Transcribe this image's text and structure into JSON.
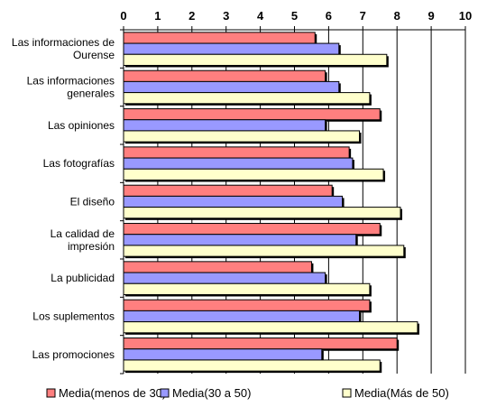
{
  "chart_data": {
    "type": "bar",
    "orientation": "horizontal",
    "categories": [
      [
        "Las informaciones de",
        "Ourense"
      ],
      [
        "Las informaciones",
        "generales"
      ],
      [
        "Las opiniones"
      ],
      [
        "Las fotografías"
      ],
      [
        "El diseño"
      ],
      [
        "La calidad de",
        "impresión"
      ],
      [
        "La publicidad"
      ],
      [
        "Los suplementos"
      ],
      [
        "Las promociones"
      ]
    ],
    "series": [
      {
        "name": "Media(menos de 30)",
        "color": "#ff7f7f",
        "values": [
          5.6,
          5.9,
          7.5,
          6.6,
          6.1,
          7.5,
          5.5,
          7.2,
          8.0
        ]
      },
      {
        "name": "Media(30 a 50)",
        "color": "#9999ff",
        "values": [
          6.3,
          6.3,
          5.9,
          6.7,
          6.4,
          6.8,
          5.9,
          6.9,
          5.8
        ]
      },
      {
        "name": "Media(Más de 50)",
        "color": "#ffffcc",
        "values": [
          7.7,
          7.2,
          6.9,
          7.6,
          8.1,
          8.2,
          7.2,
          8.6,
          7.5
        ]
      }
    ],
    "xlim": [
      0,
      10
    ],
    "xticks": [
      "0",
      "1",
      "2",
      "3",
      "4",
      "5",
      "6",
      "7",
      "8",
      "9",
      "10"
    ],
    "x_axis_position": "top",
    "grid": "vertical",
    "legend": "bottom"
  }
}
